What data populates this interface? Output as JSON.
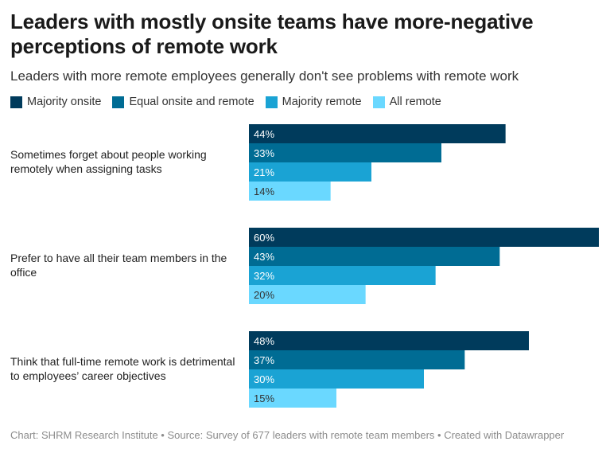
{
  "header": {
    "title": "Leaders with mostly onsite teams have more-negative perceptions of remote work",
    "subtitle": "Leaders with more remote employees generally don't see problems with remote work"
  },
  "footer": {
    "text": "Chart: SHRM Research Institute • Source: Survey of 677 leaders with remote team members • Created with Datawrapper"
  },
  "colors": {
    "Majority onsite": "#003b5c",
    "Equal onsite and remote": "#006c94",
    "Majority remote": "#1aa3d4",
    "All remote": "#6ad8ff"
  },
  "chart_data": {
    "type": "bar",
    "orientation": "horizontal",
    "value_suffix": "%",
    "xlim": [
      0,
      60
    ],
    "legend_position": "top-left",
    "grid": false,
    "categories": [
      "Sometimes forget about people working remotely when assigning tasks",
      "Prefer to have all their team members in the office",
      "Think that full-time remote work is detrimental to employees’ career objectives"
    ],
    "series": [
      {
        "name": "Majority onsite",
        "values": [
          44,
          60,
          48
        ]
      },
      {
        "name": "Equal onsite and remote",
        "values": [
          33,
          43,
          37
        ]
      },
      {
        "name": "Majority remote",
        "values": [
          21,
          32,
          30
        ]
      },
      {
        "name": "All remote",
        "values": [
          14,
          20,
          15
        ]
      }
    ]
  }
}
